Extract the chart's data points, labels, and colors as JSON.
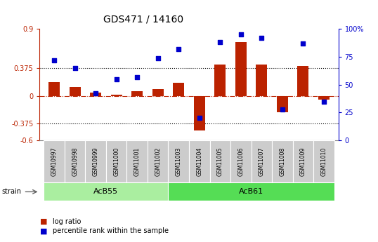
{
  "title": "GDS471 / 14160",
  "samples": [
    "GSM10997",
    "GSM10998",
    "GSM10999",
    "GSM11000",
    "GSM11001",
    "GSM11002",
    "GSM11003",
    "GSM11004",
    "GSM11005",
    "GSM11006",
    "GSM11007",
    "GSM11008",
    "GSM11009",
    "GSM11010"
  ],
  "log_ratio": [
    0.19,
    0.12,
    0.04,
    0.02,
    0.06,
    0.09,
    0.18,
    -0.47,
    0.42,
    0.72,
    0.42,
    -0.22,
    0.4,
    -0.05
  ],
  "percentile": [
    72,
    65,
    42,
    55,
    57,
    74,
    82,
    20,
    88,
    95,
    92,
    28,
    87,
    35
  ],
  "ylim_left": [
    -0.6,
    0.9
  ],
  "ylim_right": [
    0,
    100
  ],
  "yticks_left": [
    -0.6,
    -0.375,
    0.0,
    0.375,
    0.9
  ],
  "yticks_right": [
    0,
    25,
    50,
    75,
    100
  ],
  "hlines": [
    0.375,
    -0.375
  ],
  "bar_color": "#BB2200",
  "dot_color": "#0000CC",
  "acb55_count": 6,
  "acb61_count": 8,
  "acb55_color": "#AAEEA0",
  "acb61_color": "#55DD55",
  "strain_label": "strain",
  "acb55_label": "AcB55",
  "acb61_label": "AcB61",
  "legend_bar_label": "log ratio",
  "legend_dot_label": "percentile rank within the sample",
  "tick_fontsize": 7,
  "sample_fontsize": 5.5,
  "group_fontsize": 8
}
